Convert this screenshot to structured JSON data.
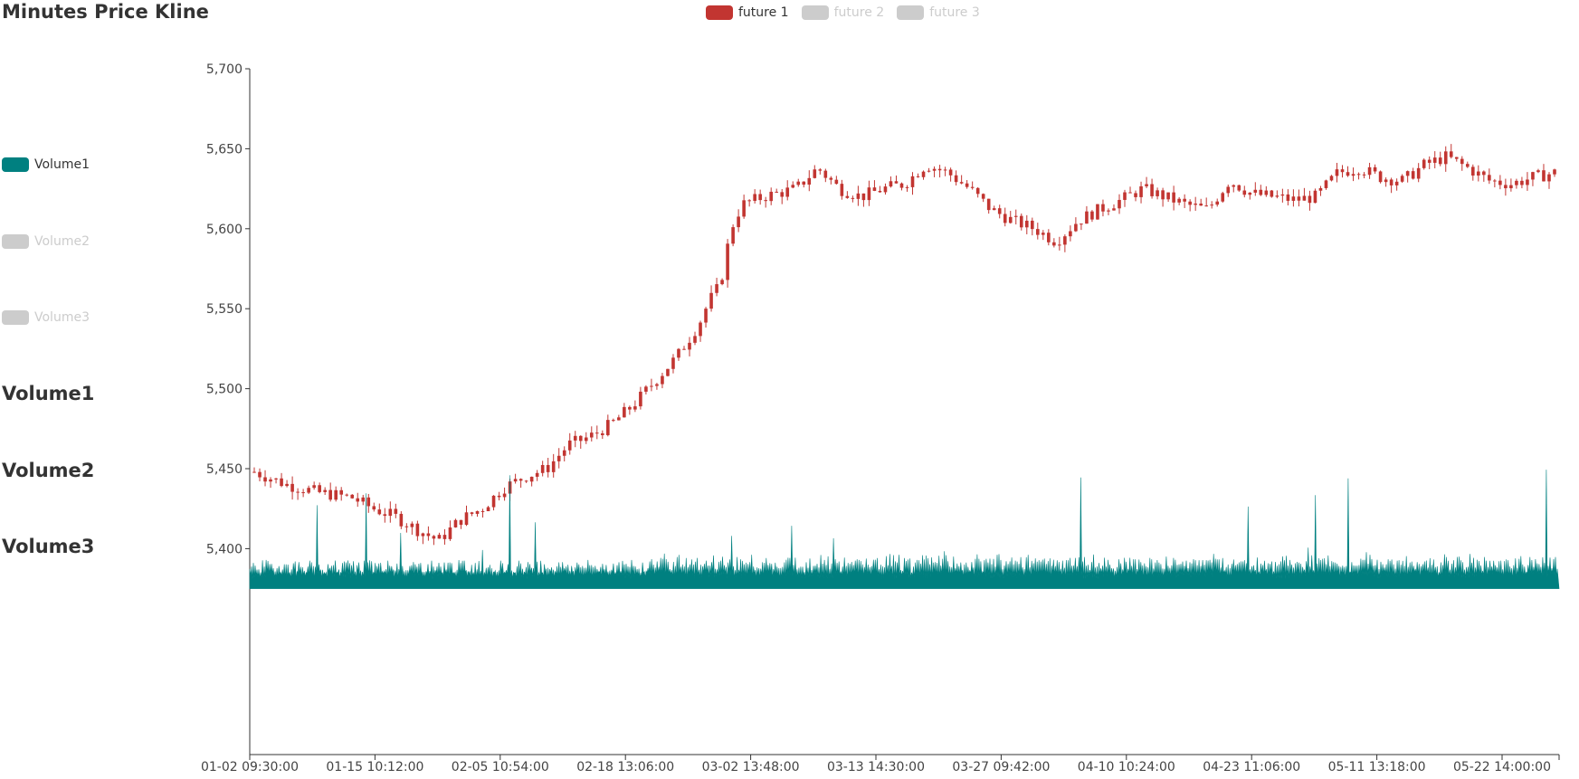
{
  "title": "Minutes Price Kline",
  "legend": [
    {
      "label": "future 1",
      "color": "#c23531",
      "active": true
    },
    {
      "label": "future 2",
      "color": "#cccccc",
      "active": false
    },
    {
      "label": "future 3",
      "color": "#cccccc",
      "active": false
    }
  ],
  "volume_legend": [
    {
      "label": "Volume1",
      "color": "#008080",
      "active": true
    },
    {
      "label": "Volume2",
      "color": "#cccccc",
      "active": false
    },
    {
      "label": "Volume3",
      "color": "#cccccc",
      "active": false
    }
  ],
  "volume_titles": [
    "Volume1",
    "Volume2",
    "Volume3"
  ],
  "chart_data": {
    "type": "candlestick",
    "title": "Minutes Price Kline",
    "ylim": [
      5375,
      5700
    ],
    "yticks": [
      5400,
      5450,
      5500,
      5550,
      5600,
      5650,
      5700
    ],
    "xticks": [
      "01-02 09:30:00",
      "01-15 10:12:00",
      "02-05 10:54:00",
      "02-18 13:06:00",
      "03-02 13:48:00",
      "03-13 14:30:00",
      "03-27 09:42:00",
      "04-10 10:24:00",
      "04-23 11:06:00",
      "05-11 13:18:00",
      "05-22 14:00:00"
    ],
    "close_path": [
      [
        0,
        5448
      ],
      [
        3,
        5440
      ],
      [
        6,
        5435
      ],
      [
        9,
        5432
      ],
      [
        11,
        5425
      ],
      [
        13,
        5420
      ],
      [
        15,
        5412
      ],
      [
        17,
        5405
      ],
      [
        19,
        5418
      ],
      [
        21,
        5425
      ],
      [
        23,
        5438
      ],
      [
        25,
        5445
      ],
      [
        27,
        5450
      ],
      [
        29,
        5465
      ],
      [
        31,
        5470
      ],
      [
        33,
        5478
      ],
      [
        35,
        5490
      ],
      [
        37,
        5505
      ],
      [
        39,
        5520
      ],
      [
        41,
        5540
      ],
      [
        42,
        5555
      ],
      [
        43,
        5565
      ],
      [
        44,
        5600
      ],
      [
        45,
        5615
      ],
      [
        47,
        5620
      ],
      [
        50,
        5625
      ],
      [
        52,
        5638
      ],
      [
        54,
        5625
      ],
      [
        56,
        5620
      ],
      [
        58,
        5625
      ],
      [
        60,
        5628
      ],
      [
        62,
        5640
      ],
      [
        64,
        5635
      ],
      [
        66,
        5625
      ],
      [
        68,
        5612
      ],
      [
        70,
        5605
      ],
      [
        72,
        5600
      ],
      [
        74,
        5592
      ],
      [
        76,
        5605
      ],
      [
        78,
        5612
      ],
      [
        80,
        5618
      ],
      [
        82,
        5625
      ],
      [
        84,
        5620
      ],
      [
        86,
        5615
      ],
      [
        88,
        5612
      ],
      [
        90,
        5630
      ],
      [
        92,
        5622
      ],
      [
        94,
        5620
      ],
      [
        96,
        5618
      ],
      [
        98,
        5620
      ],
      [
        100,
        5635
      ],
      [
        102,
        5638
      ],
      [
        104,
        5632
      ],
      [
        106,
        5630
      ],
      [
        108,
        5640
      ],
      [
        110,
        5645
      ],
      [
        112,
        5638
      ],
      [
        114,
        5630
      ],
      [
        116,
        5628
      ],
      [
        118,
        5632
      ],
      [
        120,
        5635
      ]
    ],
    "volume": {
      "series": "Volume1",
      "baseline": 5375,
      "typical": 5385,
      "spike_max": 5458
    }
  }
}
